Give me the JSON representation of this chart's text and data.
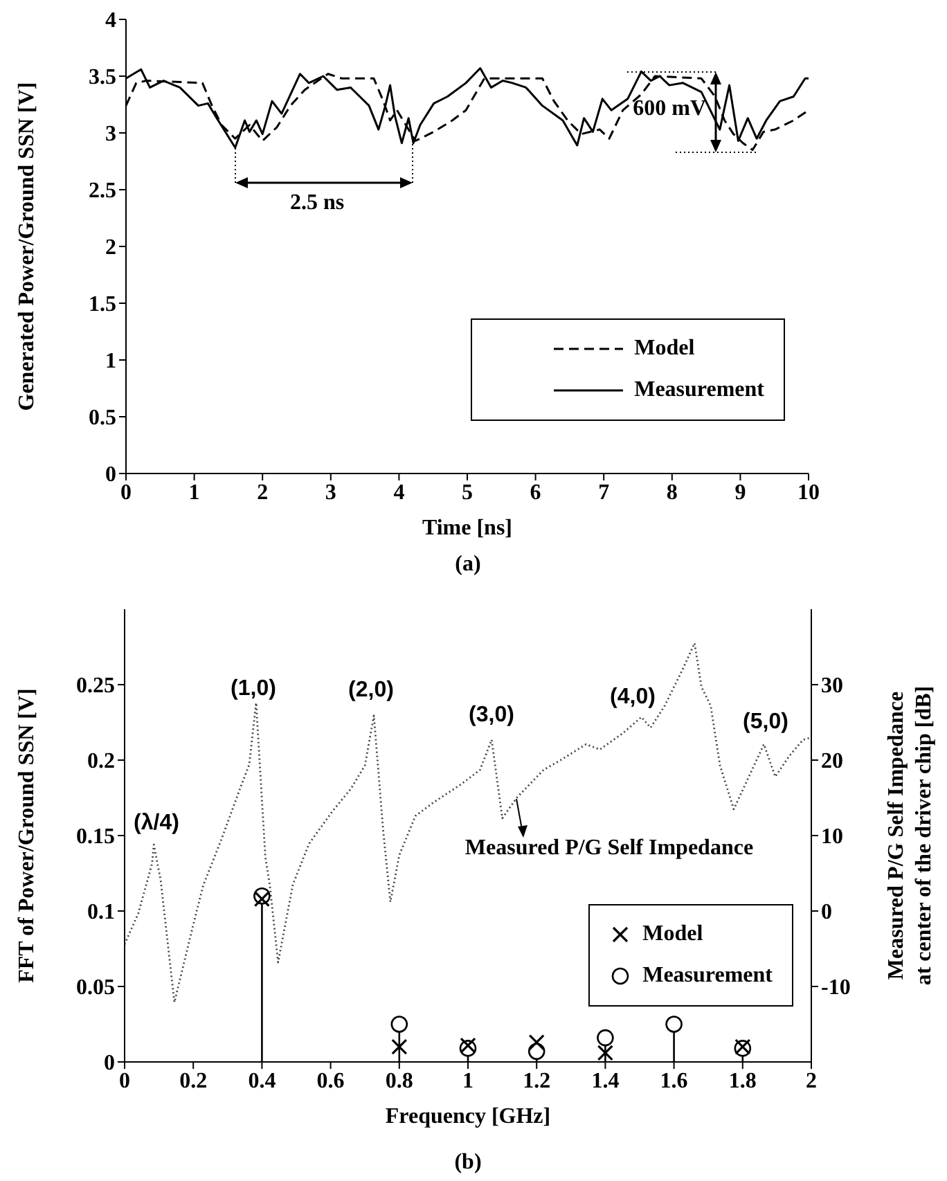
{
  "chart_data": [
    {
      "type": "line",
      "xlabel": "Time [ns]",
      "ylabel": "Generated Power/Ground SSN [V]",
      "xlim": [
        0,
        10
      ],
      "xticks": [
        0,
        1,
        2,
        3,
        4,
        5,
        6,
        7,
        8,
        9,
        10
      ],
      "ylim": [
        0,
        4
      ],
      "yticks": [
        0,
        0.5,
        1,
        1.5,
        2,
        2.5,
        3,
        3.5,
        4
      ],
      "legend": "right",
      "series": [
        {
          "name": "Model",
          "color": "#000000",
          "line_style": "dashed",
          "x": [
            0,
            0.15,
            0.3,
            1.12,
            1.26,
            1.4,
            1.6,
            1.81,
            2.0,
            2.21,
            2.41,
            2.62,
            2.96,
            3.16,
            3.63,
            3.77,
            3.87,
            3.97,
            4.24,
            4.51,
            4.78,
            4.98,
            5.25,
            5.86,
            6.1,
            6.27,
            6.47,
            6.67,
            6.94,
            7.08,
            7.28,
            7.55,
            7.75,
            8.43,
            8.63,
            8.77,
            8.9,
            9.04,
            9.18,
            9.34,
            9.51,
            9.78,
            10
          ],
          "values": [
            3.24,
            3.44,
            3.46,
            3.44,
            3.24,
            3.07,
            2.95,
            3.07,
            2.93,
            3.05,
            3.24,
            3.38,
            3.52,
            3.48,
            3.48,
            3.28,
            3.11,
            3.2,
            2.93,
            3.01,
            3.11,
            3.2,
            3.48,
            3.48,
            3.48,
            3.28,
            3.11,
            2.99,
            3.03,
            2.95,
            3.2,
            3.34,
            3.5,
            3.48,
            3.32,
            3.11,
            2.99,
            2.91,
            2.85,
            3.01,
            3.03,
            3.11,
            3.2
          ]
        },
        {
          "name": "Measurement",
          "color": "#000000",
          "line_style": "solid",
          "x": [
            0,
            0.22,
            0.35,
            0.55,
            0.79,
            1.06,
            1.2,
            1.33,
            1.6,
            1.74,
            1.81,
            1.91,
            2.0,
            2.14,
            2.28,
            2.55,
            2.68,
            2.89,
            3.09,
            3.29,
            3.56,
            3.7,
            3.8,
            3.87,
            3.94,
            4.04,
            4.14,
            4.21,
            4.31,
            4.51,
            4.71,
            4.98,
            5.19,
            5.35,
            5.52,
            5.66,
            5.86,
            6.1,
            6.4,
            6.61,
            6.71,
            6.84,
            6.98,
            7.11,
            7.35,
            7.55,
            7.69,
            7.82,
            7.96,
            8.16,
            8.43,
            8.7,
            8.84,
            8.97,
            9.11,
            9.24,
            9.38,
            9.58,
            9.78,
            9.95,
            10
          ],
          "values": [
            3.48,
            3.56,
            3.4,
            3.46,
            3.4,
            3.24,
            3.26,
            3.13,
            2.87,
            3.11,
            3.01,
            3.11,
            2.99,
            3.28,
            3.17,
            3.52,
            3.44,
            3.5,
            3.38,
            3.4,
            3.24,
            3.03,
            3.24,
            3.42,
            3.15,
            2.91,
            3.13,
            2.91,
            3.07,
            3.26,
            3.32,
            3.44,
            3.57,
            3.4,
            3.46,
            3.44,
            3.4,
            3.24,
            3.11,
            2.89,
            3.13,
            3.01,
            3.3,
            3.2,
            3.3,
            3.54,
            3.46,
            3.5,
            3.42,
            3.44,
            3.36,
            3.03,
            3.42,
            2.93,
            3.13,
            2.95,
            3.11,
            3.28,
            3.32,
            3.48,
            3.48
          ]
        }
      ],
      "annotations": [
        "2.5 ns",
        "600 mV",
        "(a)"
      ]
    },
    {
      "type": "scatter",
      "xlabel": "Frequency [GHz]",
      "ylabel": "FFT of Power/Ground SSN [V]",
      "y2label": "Measured P/G Self Impedance\nat center of the driver chip [dB]",
      "xlim": [
        0,
        2
      ],
      "xticks": [
        0,
        0.2,
        0.4,
        0.6,
        0.8,
        1,
        1.2,
        1.4,
        1.6,
        1.8,
        2
      ],
      "ylim": [
        0,
        0.3
      ],
      "yticks": [
        0,
        0.05,
        0.1,
        0.15,
        0.2,
        0.25
      ],
      "y2lim": [
        -20,
        40
      ],
      "y2ticks": [
        -10,
        0,
        10,
        20,
        30
      ],
      "legend": "bottom right",
      "series": [
        {
          "type": "line",
          "axis": "y2",
          "color": "#444444",
          "line_style": "dotted",
          "x": [
            0,
            0.04,
            0.08,
            0.085,
            0.105,
            0.145,
            0.2,
            0.229,
            0.282,
            0.336,
            0.363,
            0.383,
            0.41,
            0.423,
            0.447,
            0.49,
            0.537,
            0.605,
            0.659,
            0.7,
            0.726,
            0.753,
            0.774,
            0.8,
            0.847,
            0.9,
            0.98,
            1.035,
            1.069,
            1.1,
            1.142,
            1.22,
            1.277,
            1.344,
            1.384,
            1.452,
            1.505,
            1.532,
            1.573,
            1.626,
            1.66,
            1.68,
            1.707,
            1.734,
            1.774,
            1.815,
            1.862,
            1.895,
            1.935,
            1.976,
            2
          ],
          "values": [
            -4.4,
            -0.3,
            6.3,
            8.8,
            4.1,
            -12.1,
            -1.8,
            3.4,
            9.5,
            16.2,
            19.4,
            27.6,
            7.1,
            3.4,
            -6.8,
            3.5,
            8.9,
            13.2,
            16.2,
            19.3,
            25.9,
            10.7,
            1.2,
            7.4,
            12.6,
            14.4,
            16.8,
            18.7,
            22.7,
            12.3,
            15,
            18.7,
            20.2,
            22.1,
            21.4,
            23.6,
            25.7,
            24.3,
            27.2,
            32.1,
            35.5,
            29.7,
            27.2,
            19.3,
            13.5,
            17.5,
            22.1,
            17.8,
            20.5,
            22.7,
            23
          ]
        },
        {
          "name": "Model",
          "type": "scatter",
          "marker": "cross",
          "color": "#000000",
          "x": [
            0.4,
            0.8,
            1.0,
            1.2,
            1.4,
            1.8
          ],
          "values": [
            0.108,
            0.01,
            0.011,
            0.013,
            0.006,
            0.01
          ]
        },
        {
          "name": "Measurement",
          "type": "lollipop",
          "marker": "circle",
          "color": "#000000",
          "x": [
            0.4,
            0.8,
            1.0,
            1.2,
            1.4,
            1.6,
            1.8
          ],
          "values": [
            0.11,
            0.025,
            0.009,
            0.007,
            0.016,
            0.025,
            0.009
          ]
        }
      ],
      "annotations": [
        "(λ/4)",
        "(1,0)",
        "(2,0)",
        "(3,0)",
        "(4,0)",
        "(5,0)",
        "Measured P/G Self Impedance",
        "(b)"
      ]
    }
  ]
}
